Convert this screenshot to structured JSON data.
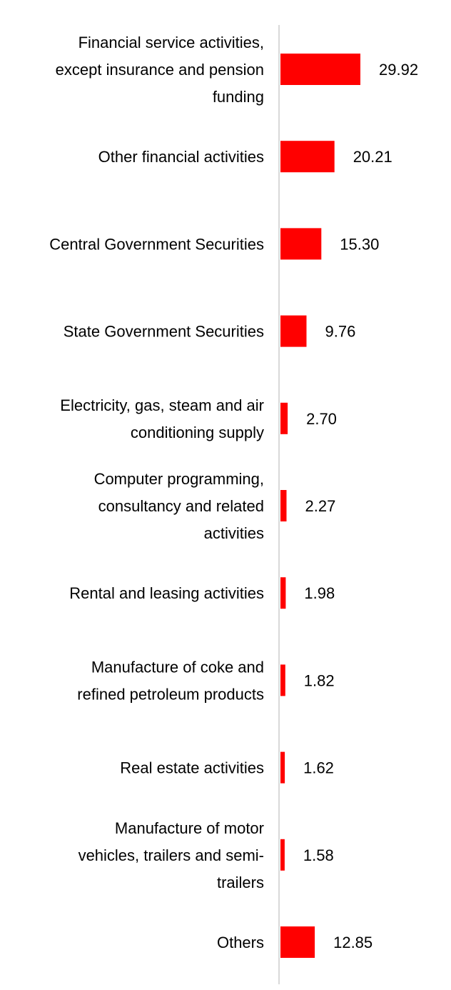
{
  "chart_data": {
    "type": "bar",
    "orientation": "horizontal",
    "title": "",
    "xlabel": "",
    "ylabel": "",
    "grid": false,
    "legend": "none",
    "bar_color": "#ff0000",
    "axis_color": "#d9d9d9",
    "xlim": [
      0,
      30
    ],
    "categories": [
      [
        "Financial service activities,",
        "except insurance and pension",
        "funding"
      ],
      [
        "Other financial activities"
      ],
      [
        "Central Government Securities"
      ],
      [
        "State Government Securities"
      ],
      [
        "Electricity, gas, steam and air",
        "conditioning supply"
      ],
      [
        "Computer programming,",
        "consultancy and related",
        "activities"
      ],
      [
        "Rental and leasing activities"
      ],
      [
        "Manufacture of coke and",
        "refined petroleum products"
      ],
      [
        "Real estate activities"
      ],
      [
        "Manufacture of motor",
        "vehicles, trailers and semi-",
        "trailers"
      ],
      [
        "Others"
      ]
    ],
    "values": [
      29.92,
      20.21,
      15.3,
      9.76,
      2.7,
      2.27,
      1.98,
      1.82,
      1.62,
      1.58,
      12.85
    ],
    "value_labels": [
      "29.92",
      "20.21",
      "15.30",
      "9.76",
      "2.70",
      "2.27",
      "1.98",
      "1.82",
      "1.62",
      "1.58",
      "12.85"
    ]
  }
}
